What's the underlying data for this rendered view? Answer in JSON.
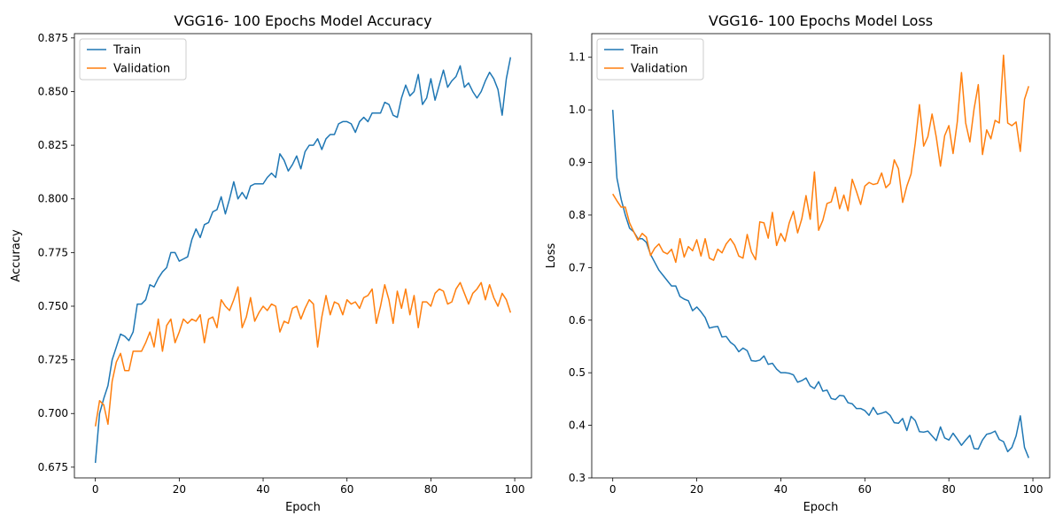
{
  "chart_data": [
    {
      "type": "line",
      "title": "VGG16- 100 Epochs Model Accuracy",
      "xlabel": "Epoch",
      "ylabel": "Accuracy",
      "xlim": [
        -5,
        104
      ],
      "ylim": [
        0.67,
        0.877
      ],
      "xticks": [
        0,
        20,
        40,
        60,
        80,
        100
      ],
      "yticks": [
        0.675,
        0.7,
        0.725,
        0.75,
        0.775,
        0.8,
        0.825,
        0.85,
        0.875
      ],
      "ytick_decimals": 3,
      "legend": "top-left",
      "grid": false,
      "series": [
        {
          "name": "Train",
          "color": "#1f77b4",
          "values": [
            0.677,
            0.7,
            0.707,
            0.713,
            0.725,
            0.731,
            0.737,
            0.736,
            0.734,
            0.738,
            0.751,
            0.751,
            0.753,
            0.76,
            0.759,
            0.763,
            0.766,
            0.768,
            0.775,
            0.775,
            0.771,
            0.772,
            0.773,
            0.781,
            0.786,
            0.782,
            0.788,
            0.789,
            0.794,
            0.795,
            0.801,
            0.793,
            0.8,
            0.808,
            0.8,
            0.803,
            0.8,
            0.806,
            0.807,
            0.807,
            0.807,
            0.81,
            0.812,
            0.81,
            0.821,
            0.818,
            0.813,
            0.816,
            0.82,
            0.814,
            0.822,
            0.825,
            0.825,
            0.828,
            0.823,
            0.828,
            0.83,
            0.83,
            0.835,
            0.836,
            0.836,
            0.835,
            0.831,
            0.836,
            0.838,
            0.836,
            0.84,
            0.84,
            0.84,
            0.845,
            0.844,
            0.839,
            0.838,
            0.847,
            0.853,
            0.848,
            0.85,
            0.858,
            0.844,
            0.847,
            0.856,
            0.846,
            0.853,
            0.86,
            0.852,
            0.855,
            0.857,
            0.862,
            0.852,
            0.854,
            0.85,
            0.847,
            0.85,
            0.855,
            0.859,
            0.856,
            0.851,
            0.839,
            0.856,
            0.866
          ]
        },
        {
          "name": "Validation",
          "color": "#ff7f0e",
          "values": [
            0.694,
            0.706,
            0.704,
            0.695,
            0.715,
            0.724,
            0.728,
            0.72,
            0.72,
            0.729,
            0.729,
            0.729,
            0.733,
            0.738,
            0.731,
            0.744,
            0.729,
            0.741,
            0.744,
            0.733,
            0.738,
            0.744,
            0.742,
            0.744,
            0.743,
            0.746,
            0.733,
            0.744,
            0.745,
            0.74,
            0.753,
            0.75,
            0.748,
            0.753,
            0.759,
            0.74,
            0.745,
            0.754,
            0.743,
            0.747,
            0.75,
            0.748,
            0.751,
            0.75,
            0.738,
            0.743,
            0.742,
            0.749,
            0.75,
            0.744,
            0.749,
            0.753,
            0.751,
            0.731,
            0.745,
            0.755,
            0.746,
            0.752,
            0.751,
            0.746,
            0.753,
            0.751,
            0.752,
            0.749,
            0.754,
            0.755,
            0.758,
            0.742,
            0.75,
            0.76,
            0.753,
            0.742,
            0.757,
            0.749,
            0.758,
            0.746,
            0.755,
            0.74,
            0.752,
            0.752,
            0.75,
            0.756,
            0.758,
            0.757,
            0.751,
            0.752,
            0.758,
            0.761,
            0.756,
            0.751,
            0.756,
            0.758,
            0.761,
            0.753,
            0.76,
            0.754,
            0.75,
            0.756,
            0.753,
            0.747
          ]
        }
      ]
    },
    {
      "type": "line",
      "title": "VGG16- 100 Epochs Model Loss",
      "xlabel": "Epoch",
      "ylabel": "Loss",
      "xlim": [
        -5,
        104
      ],
      "ylim": [
        0.3,
        1.145
      ],
      "xticks": [
        0,
        20,
        40,
        60,
        80,
        100
      ],
      "yticks": [
        0.3,
        0.4,
        0.5,
        0.6,
        0.7,
        0.8,
        0.9,
        1.0,
        1.1
      ],
      "ytick_decimals": 1,
      "legend": "top-left",
      "grid": false,
      "series": [
        {
          "name": "Train",
          "color": "#1f77b4",
          "values": [
            1.0,
            0.87,
            0.83,
            0.8,
            0.775,
            0.768,
            0.755,
            0.755,
            0.748,
            0.725,
            0.71,
            0.695,
            0.685,
            0.675,
            0.665,
            0.665,
            0.645,
            0.64,
            0.637,
            0.618,
            0.625,
            0.616,
            0.605,
            0.585,
            0.587,
            0.588,
            0.568,
            0.569,
            0.558,
            0.552,
            0.54,
            0.547,
            0.542,
            0.523,
            0.522,
            0.524,
            0.532,
            0.516,
            0.518,
            0.507,
            0.5,
            0.5,
            0.499,
            0.496,
            0.482,
            0.485,
            0.49,
            0.475,
            0.47,
            0.483,
            0.465,
            0.467,
            0.451,
            0.449,
            0.457,
            0.456,
            0.443,
            0.441,
            0.432,
            0.432,
            0.428,
            0.419,
            0.434,
            0.421,
            0.423,
            0.426,
            0.419,
            0.405,
            0.404,
            0.413,
            0.39,
            0.417,
            0.409,
            0.388,
            0.387,
            0.389,
            0.38,
            0.371,
            0.397,
            0.376,
            0.372,
            0.385,
            0.374,
            0.362,
            0.372,
            0.381,
            0.356,
            0.355,
            0.372,
            0.383,
            0.385,
            0.389,
            0.373,
            0.369,
            0.35,
            0.358,
            0.38,
            0.418,
            0.358,
            0.338
          ]
        },
        {
          "name": "Validation",
          "color": "#ff7f0e",
          "values": [
            0.84,
            0.827,
            0.815,
            0.815,
            0.785,
            0.768,
            0.752,
            0.765,
            0.758,
            0.723,
            0.737,
            0.745,
            0.73,
            0.726,
            0.735,
            0.71,
            0.755,
            0.72,
            0.74,
            0.732,
            0.753,
            0.722,
            0.755,
            0.718,
            0.714,
            0.735,
            0.728,
            0.745,
            0.755,
            0.743,
            0.722,
            0.718,
            0.763,
            0.73,
            0.715,
            0.787,
            0.785,
            0.756,
            0.805,
            0.742,
            0.765,
            0.75,
            0.785,
            0.807,
            0.766,
            0.793,
            0.837,
            0.792,
            0.882,
            0.771,
            0.79,
            0.822,
            0.825,
            0.853,
            0.812,
            0.838,
            0.808,
            0.868,
            0.845,
            0.82,
            0.855,
            0.862,
            0.858,
            0.86,
            0.88,
            0.852,
            0.86,
            0.905,
            0.888,
            0.824,
            0.855,
            0.878,
            0.937,
            1.01,
            0.931,
            0.949,
            0.992,
            0.948,
            0.893,
            0.951,
            0.97,
            0.917,
            0.977,
            1.071,
            0.975,
            0.939,
            1.002,
            1.048,
            0.915,
            0.962,
            0.945,
            0.98,
            0.975,
            1.104,
            0.975,
            0.97,
            0.977,
            0.921,
            1.02,
            1.045
          ]
        }
      ]
    }
  ]
}
